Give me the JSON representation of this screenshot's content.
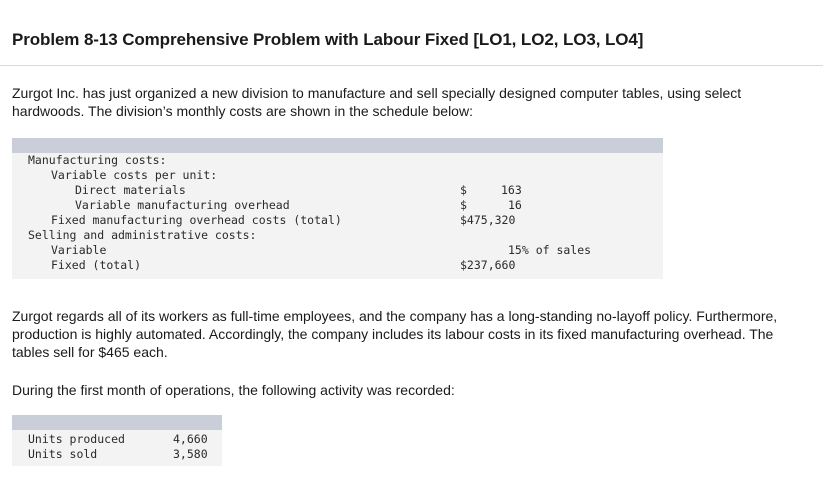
{
  "title": "Problem 8-13 Comprehensive Problem with Labour Fixed [LO1, LO2, LO3, LO4]",
  "intro": "Zurgot Inc. has just organized a new division to manufacture and sell specially designed computer tables, using select hardwoods. The division’s monthly costs are shown in the schedule below:",
  "cost_table": {
    "rows": [
      {
        "label": "Manufacturing costs:",
        "indent": 0,
        "dollar": "",
        "value": ""
      },
      {
        "label": "Variable costs per unit:",
        "indent": 1,
        "dollar": "",
        "value": ""
      },
      {
        "label": "Direct materials",
        "indent": 2,
        "dollar": "$",
        "value": "163"
      },
      {
        "label": "Variable manufacturing overhead",
        "indent": 2,
        "dollar": "$",
        "value": "16"
      },
      {
        "label": "Fixed manufacturing overhead costs (total)",
        "indent": 1,
        "dollar": "",
        "value": "$475,320"
      },
      {
        "label": "Selling and administrative costs:",
        "indent": 0,
        "dollar": "",
        "value": ""
      },
      {
        "label": "Variable",
        "indent": 1,
        "dollar": "",
        "value": "15% of sales"
      },
      {
        "label": "Fixed (total)",
        "indent": 1,
        "dollar": "",
        "value": "$237,660"
      }
    ]
  },
  "para2": "Zurgot regards all of its workers as full-time employees, and the company has a long-standing no-layoff policy. Furthermore, production is highly automated. Accordingly, the company includes its labour costs in its fixed manufacturing overhead. The tables sell for $465 each.",
  "para3": "During the first month of operations, the following activity was recorded:",
  "activity_table": {
    "rows": [
      {
        "label": "Units produced",
        "value": "4,660"
      },
      {
        "label": "Units sold",
        "value": "3,580"
      }
    ]
  }
}
